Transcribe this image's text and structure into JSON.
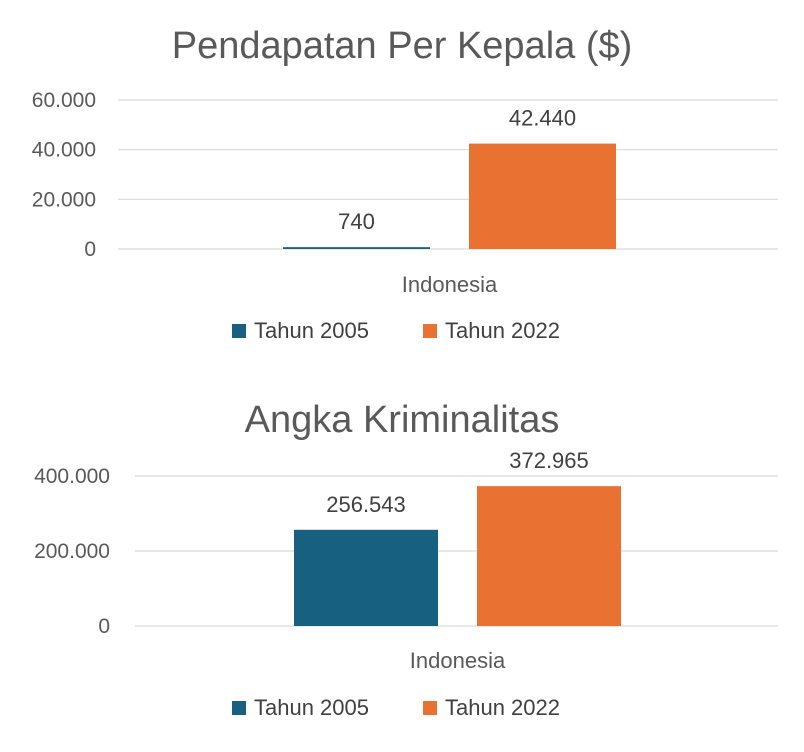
{
  "chart_data": [
    {
      "type": "bar",
      "title": "Pendapatan Per Kepala ($)",
      "categories": [
        "Indonesia"
      ],
      "series": [
        {
          "name": "Tahun 2005",
          "values": [
            740
          ],
          "value_labels": [
            "740"
          ]
        },
        {
          "name": "Tahun 2022",
          "values": [
            42440
          ],
          "value_labels": [
            "42.440"
          ]
        }
      ],
      "ylim": [
        0,
        60000
      ],
      "yticks": [
        {
          "value": 0,
          "label": "0"
        },
        {
          "value": 20000,
          "label": "20.000"
        },
        {
          "value": 40000,
          "label": "40.000"
        },
        {
          "value": 60000,
          "label": "60.000"
        }
      ],
      "grid": true,
      "legend_position": "bottom"
    },
    {
      "type": "bar",
      "title": "Angka Kriminalitas",
      "categories": [
        "Indonesia"
      ],
      "series": [
        {
          "name": "Tahun 2005",
          "values": [
            256543
          ],
          "value_labels": [
            "256.543"
          ]
        },
        {
          "name": "Tahun 2022",
          "values": [
            372965
          ],
          "value_labels": [
            "372.965"
          ]
        }
      ],
      "ylim": [
        0,
        400000
      ],
      "yticks": [
        {
          "value": 0,
          "label": "0"
        },
        {
          "value": 200000,
          "label": "200.000"
        },
        {
          "value": 400000,
          "label": "400.000"
        }
      ],
      "grid": true,
      "legend_position": "bottom"
    }
  ],
  "colors": {
    "Tahun 2005": "#17607f",
    "Tahun 2022": "#e97132"
  }
}
